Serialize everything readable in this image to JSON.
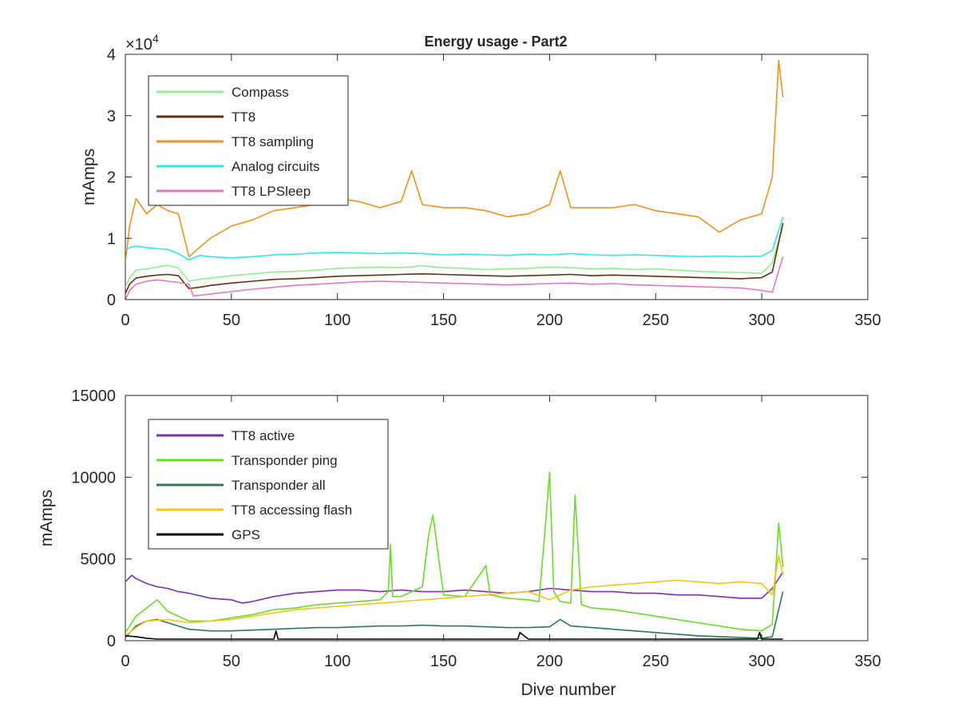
{
  "figure": {
    "title": "Energy usage - Part2"
  },
  "chart_data": [
    {
      "type": "line",
      "title": "Energy usage - Part2",
      "xlabel": "",
      "ylabel": "mAmps",
      "xlim": [
        0,
        350
      ],
      "ylim": [
        0,
        40000
      ],
      "xticks": [
        0,
        50,
        100,
        150,
        200,
        250,
        300,
        350
      ],
      "yticks": [
        0,
        10000,
        20000,
        30000,
        40000
      ],
      "ytick_labels": [
        "0",
        "1",
        "2",
        "3",
        "4"
      ],
      "y_multiplier_base": "×10",
      "y_multiplier_exp": "4",
      "grid": false,
      "legend_position": "top-left",
      "series": [
        {
          "name": "Compass",
          "color": "#90ee90",
          "x": [
            0,
            2,
            5,
            10,
            15,
            20,
            25,
            30,
            35,
            40,
            50,
            60,
            70,
            80,
            90,
            100,
            110,
            120,
            130,
            140,
            150,
            160,
            170,
            180,
            190,
            200,
            210,
            220,
            230,
            240,
            250,
            260,
            270,
            280,
            290,
            300,
            305,
            310
          ],
          "y": [
            2000,
            3500,
            4800,
            5000,
            5300,
            5600,
            5200,
            3000,
            3300,
            3500,
            3900,
            4200,
            4500,
            4600,
            4800,
            5100,
            5200,
            5300,
            5200,
            5500,
            5200,
            5100,
            4900,
            5000,
            5100,
            5300,
            5200,
            5000,
            5100,
            4900,
            5000,
            4800,
            4600,
            4500,
            4400,
            4300,
            6000,
            12000
          ]
        },
        {
          "name": "TT8",
          "color": "#6b2d0d",
          "x": [
            0,
            2,
            5,
            10,
            15,
            20,
            25,
            30,
            35,
            40,
            50,
            60,
            70,
            80,
            90,
            100,
            110,
            120,
            130,
            140,
            150,
            160,
            170,
            180,
            190,
            200,
            210,
            220,
            230,
            240,
            250,
            260,
            270,
            280,
            290,
            300,
            305,
            310
          ],
          "y": [
            1000,
            2500,
            3500,
            3800,
            4000,
            4100,
            3900,
            1800,
            2000,
            2300,
            2700,
            3000,
            3300,
            3400,
            3600,
            3800,
            3900,
            4000,
            4100,
            4200,
            4100,
            4000,
            3900,
            3800,
            3900,
            4000,
            4100,
            3900,
            4000,
            3900,
            3800,
            3700,
            3600,
            3500,
            3400,
            3600,
            4500,
            12500
          ]
        },
        {
          "name": "TT8 sampling",
          "color": "#f0921e",
          "x": [
            0,
            2,
            5,
            10,
            15,
            20,
            25,
            30,
            35,
            40,
            50,
            60,
            70,
            80,
            90,
            100,
            110,
            120,
            130,
            135,
            140,
            150,
            160,
            170,
            180,
            190,
            200,
            205,
            210,
            220,
            230,
            240,
            250,
            260,
            270,
            280,
            290,
            300,
            305,
            308,
            310
          ],
          "y": [
            6000,
            12000,
            16500,
            14000,
            15500,
            14500,
            14000,
            7000,
            8500,
            10000,
            12000,
            13000,
            14500,
            15000,
            15500,
            16500,
            16000,
            15000,
            16000,
            21000,
            15500,
            15000,
            15000,
            14500,
            13500,
            14000,
            15500,
            21000,
            15000,
            15000,
            15000,
            15500,
            14500,
            14000,
            13500,
            11000,
            13000,
            14000,
            20000,
            39000,
            33000
          ]
        },
        {
          "name": "Analog circuits",
          "color": "#2ee8e8",
          "x": [
            0,
            2,
            5,
            10,
            15,
            20,
            25,
            30,
            35,
            40,
            50,
            60,
            70,
            80,
            90,
            100,
            110,
            120,
            130,
            140,
            150,
            160,
            170,
            180,
            190,
            200,
            210,
            220,
            230,
            240,
            250,
            260,
            270,
            280,
            290,
            300,
            305,
            310
          ],
          "y": [
            8000,
            8500,
            8700,
            8500,
            8300,
            8200,
            7500,
            6500,
            7200,
            7000,
            6800,
            7000,
            7300,
            7400,
            7600,
            7700,
            7600,
            7500,
            7600,
            7500,
            7300,
            7400,
            7300,
            7200,
            7400,
            7300,
            7500,
            7300,
            7200,
            7300,
            7200,
            7100,
            7000,
            7100,
            7000,
            7100,
            8000,
            13500
          ]
        },
        {
          "name": "TT8 LPSleep",
          "color": "#e377c2",
          "x": [
            0,
            2,
            5,
            10,
            15,
            20,
            25,
            30,
            32,
            35,
            40,
            50,
            60,
            70,
            80,
            90,
            100,
            110,
            120,
            130,
            140,
            150,
            160,
            170,
            180,
            190,
            200,
            210,
            220,
            230,
            240,
            250,
            260,
            270,
            280,
            290,
            300,
            305,
            310
          ],
          "y": [
            0,
            1500,
            2500,
            3000,
            3200,
            3000,
            2800,
            2500,
            600,
            700,
            900,
            1300,
            1700,
            2000,
            2300,
            2500,
            2700,
            2900,
            3000,
            2900,
            2800,
            2700,
            2600,
            2500,
            2400,
            2500,
            2600,
            2700,
            2500,
            2600,
            2400,
            2300,
            2200,
            2100,
            2000,
            1900,
            1500,
            1200,
            7000
          ]
        }
      ]
    },
    {
      "type": "line",
      "title": "",
      "xlabel": "Dive number",
      "ylabel": "mAmps",
      "xlim": [
        0,
        350
      ],
      "ylim": [
        0,
        15000
      ],
      "xticks": [
        0,
        50,
        100,
        150,
        200,
        250,
        300,
        350
      ],
      "yticks": [
        0,
        5000,
        10000,
        15000
      ],
      "ytick_labels": [
        "0",
        "5000",
        "10000",
        "15000"
      ],
      "grid": false,
      "legend_position": "top-left",
      "series": [
        {
          "name": "TT8 active",
          "color": "#7e2fb0",
          "x": [
            0,
            3,
            5,
            10,
            15,
            20,
            25,
            30,
            40,
            50,
            55,
            60,
            70,
            80,
            90,
            100,
            110,
            120,
            130,
            140,
            150,
            160,
            170,
            180,
            190,
            200,
            210,
            220,
            230,
            240,
            250,
            260,
            270,
            280,
            290,
            300,
            305,
            310
          ],
          "y": [
            3600,
            4000,
            3800,
            3500,
            3300,
            3200,
            3000,
            2900,
            2600,
            2500,
            2300,
            2400,
            2700,
            2900,
            3000,
            3100,
            3100,
            3000,
            3100,
            3000,
            3000,
            3100,
            3000,
            2900,
            3000,
            3200,
            3100,
            3000,
            3000,
            2900,
            2900,
            2800,
            2800,
            2700,
            2600,
            2600,
            3200,
            4200
          ]
        },
        {
          "name": "Transponder ping",
          "color": "#6bdc25",
          "x": [
            0,
            5,
            10,
            15,
            20,
            25,
            30,
            40,
            50,
            60,
            70,
            80,
            90,
            100,
            110,
            120,
            124,
            125,
            126,
            130,
            135,
            140,
            143,
            145,
            150,
            160,
            168,
            170,
            172,
            180,
            190,
            195,
            198,
            200,
            202,
            205,
            210,
            212,
            215,
            220,
            230,
            240,
            250,
            260,
            270,
            280,
            290,
            300,
            305,
            308,
            310
          ],
          "y": [
            500,
            1500,
            2000,
            2500,
            1800,
            1500,
            1200,
            1200,
            1400,
            1600,
            1900,
            2000,
            2200,
            2300,
            2400,
            2500,
            3000,
            5900,
            2700,
            2700,
            3000,
            3300,
            6500,
            7700,
            2800,
            2700,
            4200,
            4600,
            2800,
            2600,
            2500,
            2400,
            7000,
            10300,
            3000,
            2400,
            2300,
            8900,
            2200,
            2000,
            1900,
            1700,
            1500,
            1300,
            1100,
            900,
            700,
            600,
            1000,
            7200,
            4500
          ]
        },
        {
          "name": "Transponder all",
          "color": "#2e7a4e",
          "x": [
            0,
            5,
            10,
            15,
            20,
            25,
            30,
            40,
            50,
            60,
            70,
            80,
            90,
            100,
            110,
            120,
            130,
            140,
            150,
            160,
            170,
            180,
            190,
            200,
            205,
            210,
            220,
            230,
            240,
            250,
            260,
            270,
            280,
            290,
            300,
            305,
            310
          ],
          "y": [
            200,
            900,
            1200,
            1300,
            1100,
            900,
            700,
            600,
            600,
            650,
            700,
            750,
            800,
            800,
            850,
            900,
            900,
            950,
            900,
            900,
            850,
            800,
            800,
            850,
            1300,
            900,
            800,
            700,
            600,
            500,
            400,
            300,
            250,
            200,
            150,
            250,
            3000
          ]
        },
        {
          "name": "TT8 accessing flash",
          "color": "#f5c518",
          "x": [
            0,
            5,
            10,
            20,
            30,
            40,
            50,
            60,
            70,
            80,
            90,
            100,
            110,
            120,
            130,
            140,
            150,
            160,
            170,
            180,
            190,
            200,
            210,
            220,
            230,
            240,
            250,
            260,
            270,
            280,
            290,
            300,
            305,
            308,
            310
          ],
          "y": [
            300,
            800,
            1200,
            1300,
            1100,
            1200,
            1300,
            1500,
            1700,
            1900,
            2000,
            2100,
            2200,
            2300,
            2400,
            2500,
            2600,
            2700,
            2800,
            2900,
            3000,
            2500,
            3100,
            3300,
            3400,
            3500,
            3600,
            3700,
            3600,
            3500,
            3600,
            3500,
            2800,
            5200,
            4000
          ]
        },
        {
          "name": "GPS",
          "color": "#000000",
          "x": [
            0,
            5,
            10,
            15,
            20,
            30,
            40,
            50,
            60,
            70,
            71,
            72,
            80,
            90,
            100,
            110,
            120,
            130,
            140,
            150,
            160,
            170,
            180,
            185,
            186,
            190,
            200,
            210,
            220,
            230,
            240,
            250,
            260,
            270,
            280,
            290,
            298,
            299,
            300,
            305,
            310
          ],
          "y": [
            300,
            250,
            150,
            100,
            100,
            100,
            100,
            100,
            100,
            100,
            600,
            100,
            100,
            100,
            100,
            100,
            100,
            100,
            100,
            100,
            100,
            100,
            100,
            100,
            500,
            100,
            100,
            100,
            100,
            100,
            100,
            100,
            100,
            100,
            100,
            100,
            100,
            500,
            100,
            100,
            100
          ]
        }
      ]
    }
  ]
}
